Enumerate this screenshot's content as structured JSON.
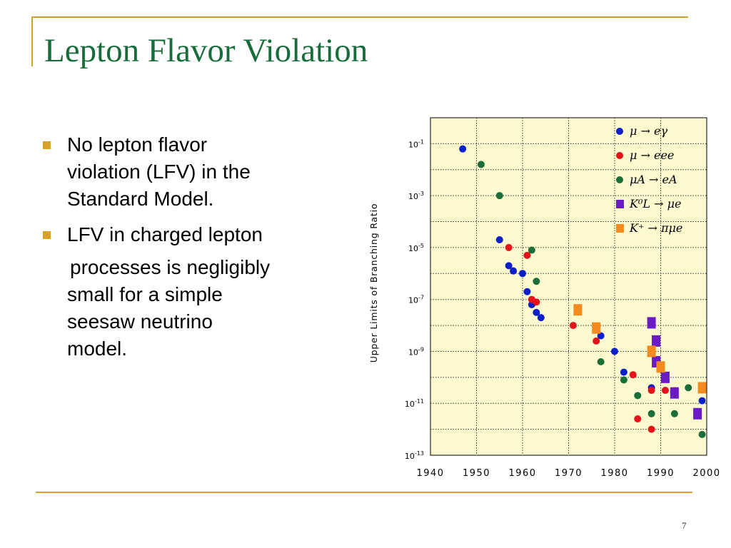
{
  "slide": {
    "title": "Lepton Flavor Violation",
    "page_number": "7",
    "bullets": [
      {
        "lines": [
          "No lepton flavor",
          "violation (LFV) in the",
          "Standard Model."
        ]
      },
      {
        "lines": [
          "LFV in charged lepton"
        ]
      }
    ],
    "continuation": [
      "processes is negligibly",
      "small for a simple",
      "seesaw  neutrino",
      "model."
    ]
  },
  "colors": {
    "accent": "#d6a126",
    "title": "#176c3a",
    "plot_background": "#fcf9cf",
    "blue": "#0a1fc8",
    "red": "#e4131a",
    "green": "#1b6e38",
    "purple": "#6a1bc6",
    "orange": "#f28a1e"
  },
  "chart_data": {
    "type": "scatter",
    "title": "",
    "xlabel": "",
    "ylabel": "Upper Limits of Branching Ratio",
    "xlim": [
      1940,
      2000
    ],
    "ylim_log10": [
      -13,
      0
    ],
    "y_scale": "log",
    "grid": true,
    "legend_position": "top-right",
    "x_ticks": [
      1940,
      1950,
      1960,
      1970,
      1980,
      1990,
      2000
    ],
    "y_ticks": [
      {
        "exp": -1,
        "base": "10",
        "sup": "-1"
      },
      {
        "exp": -3,
        "base": "10",
        "sup": "-3"
      },
      {
        "exp": -5,
        "base": "10",
        "sup": "-5"
      },
      {
        "exp": -7,
        "base": "10",
        "sup": "-7"
      },
      {
        "exp": -9,
        "base": "10",
        "sup": "-9"
      },
      {
        "exp": -11,
        "base": "10",
        "sup": "-11"
      },
      {
        "exp": -13,
        "base": "10",
        "sup": "-13"
      }
    ],
    "series": [
      {
        "name": "μ → eγ",
        "marker": "circle",
        "color": "#0a1fc8",
        "points": [
          [
            1947,
            -1.2
          ],
          [
            1955,
            -4.7
          ],
          [
            1957,
            -5.7
          ],
          [
            1958,
            -5.9
          ],
          [
            1960,
            -6.0
          ],
          [
            1961,
            -6.7
          ],
          [
            1962,
            -7.2
          ],
          [
            1963,
            -7.5
          ],
          [
            1964,
            -7.7
          ],
          [
            1977,
            -8.4
          ],
          [
            1980,
            -9.0
          ],
          [
            1982,
            -9.8
          ],
          [
            1988,
            -10.4
          ],
          [
            1999,
            -10.9
          ]
        ]
      },
      {
        "name": "μ → eee",
        "marker": "circle",
        "color": "#e4131a",
        "points": [
          [
            1957,
            -5.0
          ],
          [
            1961,
            -5.3
          ],
          [
            1962,
            -7.0
          ],
          [
            1963,
            -7.1
          ],
          [
            1971,
            -8.0
          ],
          [
            1976,
            -8.6
          ],
          [
            1984,
            -9.9
          ],
          [
            1985,
            -11.6
          ],
          [
            1988,
            -10.5
          ],
          [
            1988,
            -12.0
          ],
          [
            1991,
            -10.5
          ]
        ]
      },
      {
        "name": "μA → eA",
        "marker": "circle",
        "color": "#1b6e38",
        "points": [
          [
            1951,
            -1.8
          ],
          [
            1955,
            -3.0
          ],
          [
            1962,
            -5.1
          ],
          [
            1963,
            -6.3
          ],
          [
            1977,
            -9.4
          ],
          [
            1982,
            -10.1
          ],
          [
            1985,
            -10.7
          ],
          [
            1988,
            -11.4
          ],
          [
            1993,
            -11.4
          ],
          [
            1996,
            -10.4
          ],
          [
            1999,
            -12.2
          ]
        ]
      },
      {
        "name": "K⁰_L → μe",
        "marker": "square",
        "color": "#6a1bc6",
        "points": [
          [
            1988,
            -7.9
          ],
          [
            1989,
            -8.6
          ],
          [
            1989,
            -9.4
          ],
          [
            1991,
            -10.0
          ],
          [
            1993,
            -10.6
          ],
          [
            1998,
            -11.4
          ]
        ]
      },
      {
        "name": "K⁺ → πμe",
        "marker": "square",
        "color": "#f28a1e",
        "points": [
          [
            1972,
            -7.4
          ],
          [
            1976,
            -8.1
          ],
          [
            1988,
            -9.0
          ],
          [
            1990,
            -9.6
          ],
          [
            1999,
            -10.4
          ]
        ]
      }
    ],
    "legend": [
      {
        "label": "μ → eγ",
        "color": "#0a1fc8",
        "marker": "circle"
      },
      {
        "label": "μ → eee",
        "color": "#e4131a",
        "marker": "circle"
      },
      {
        "label": "μA → eA",
        "color": "#1b6e38",
        "marker": "circle"
      },
      {
        "label": "K⁰L → μe",
        "color": "#6a1bc6",
        "marker": "square"
      },
      {
        "label": "K⁺ → πμe",
        "color": "#f28a1e",
        "marker": "square"
      }
    ]
  }
}
